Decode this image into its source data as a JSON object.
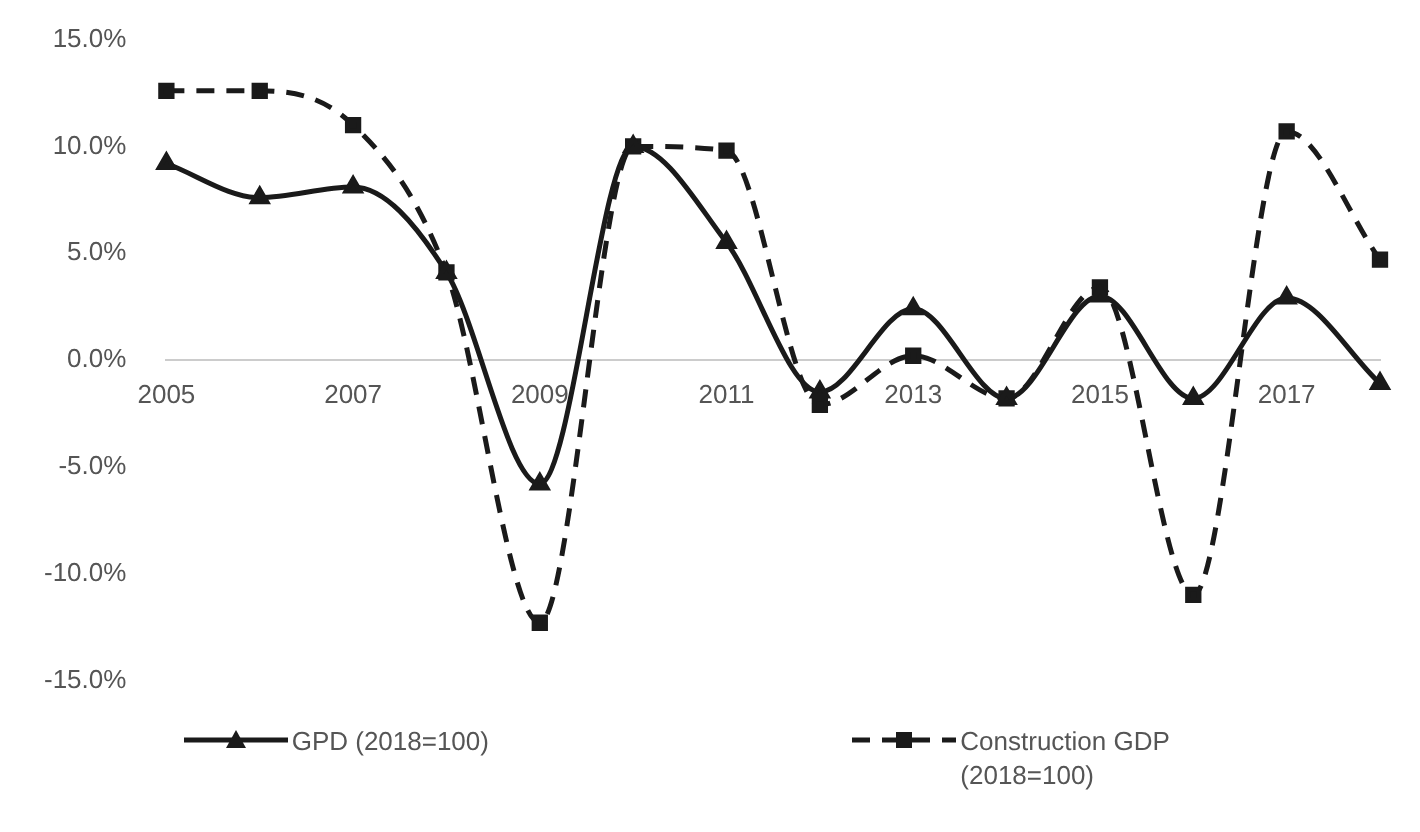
{
  "chart_data": {
    "type": "line",
    "categories": [
      "2005",
      null,
      "2007",
      null,
      "2009",
      null,
      "2011",
      null,
      "2013",
      null,
      "2015",
      null,
      "2017",
      null
    ],
    "series": [
      {
        "name": "GPD (2018=100)",
        "color": "#1a1a1a",
        "marker": "triangle",
        "line_style": "solid",
        "values": [
          9.2,
          7.6,
          8.1,
          4.1,
          -5.8,
          10.0,
          5.5,
          -1.5,
          2.4,
          -1.8,
          3.0,
          -1.8,
          2.9,
          -1.1
        ]
      },
      {
        "name": "Construction GDP (2018=100)",
        "color": "#1a1a1a",
        "marker": "square",
        "line_style": "dashed",
        "values": [
          12.6,
          12.6,
          11.0,
          4.1,
          -12.3,
          10.0,
          9.8,
          -2.1,
          0.2,
          -1.8,
          3.4,
          -11.0,
          10.7,
          4.7
        ]
      }
    ],
    "ylim": [
      -15,
      15
    ],
    "yticks": [
      {
        "value": -15,
        "label": "-15.0%"
      },
      {
        "value": -10,
        "label": "-10.0%"
      },
      {
        "value": -5,
        "label": "-5.0%"
      },
      {
        "value": 0,
        "label": "0.0%"
      },
      {
        "value": 5,
        "label": "5.0%"
      },
      {
        "value": 10,
        "label": "10.0%"
      },
      {
        "value": 15,
        "label": "15.0%"
      }
    ],
    "grid": false,
    "legend": "bottom"
  }
}
